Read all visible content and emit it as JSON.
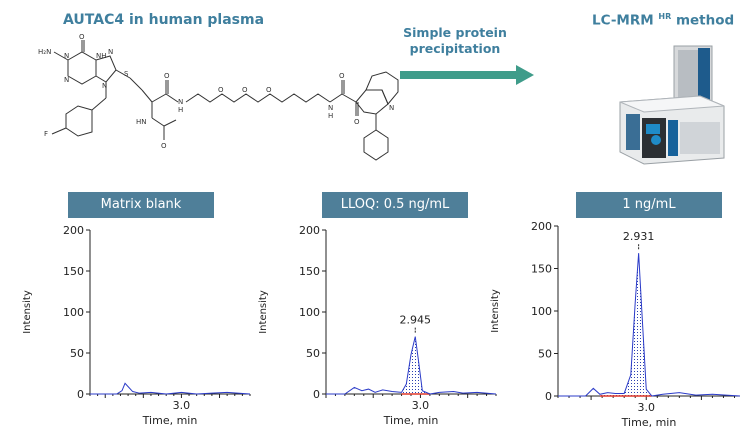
{
  "header": {
    "molecule_title": "AUTAC4 in human plasma",
    "step_label_line1": "Simple protein",
    "step_label_line2": "precipitation",
    "method_prefix": "LC-MRM",
    "method_sup": "HR",
    "method_suffix": "method"
  },
  "molecule_atoms": {
    "h2n": "H₂N",
    "o": "O",
    "nh": "NH",
    "n1": "N",
    "n2": "N",
    "n3": "N",
    "n4": "N",
    "s": "S",
    "f": "F",
    "o_amide": "O",
    "hn_amide": "HN",
    "o_acetyl": "O",
    "h_nh": "H",
    "n_chain": "N",
    "o1": "O",
    "o2": "O",
    "o3": "O",
    "hn_end": "N",
    "h_end": "H",
    "o_end1": "O",
    "o_end2": "O",
    "nh_indole": "N"
  },
  "chart_data": [
    {
      "type": "line",
      "title": "Matrix blank",
      "xlabel": "Time, min",
      "ylabel": "Intensity",
      "ylim": [
        0,
        200
      ],
      "yticks": [
        0,
        50,
        100,
        150,
        200
      ],
      "xticks": [
        3.0
      ],
      "xlim": [
        1.8,
        3.9
      ],
      "peak_label": "",
      "series": [
        {
          "x": [
            1.8,
            2.15,
            2.22,
            2.26,
            2.3,
            2.36,
            2.45,
            2.6,
            2.8,
            3.0,
            3.2,
            3.4,
            3.6,
            3.9
          ],
          "y": [
            0,
            0,
            4,
            13,
            9,
            3,
            1,
            2,
            0,
            2,
            0,
            1,
            2,
            0
          ]
        }
      ]
    },
    {
      "type": "line",
      "title": "LLOQ: 0.5 ng/mL",
      "xlabel": "Time, min",
      "ylabel": "Intensity",
      "ylim": [
        0,
        200
      ],
      "yticks": [
        0,
        50,
        100,
        150,
        200
      ],
      "xticks": [
        3.0
      ],
      "xlim": [
        2.0,
        3.8
      ],
      "peak_label": "2.945",
      "series": [
        {
          "x": [
            2.0,
            2.2,
            2.3,
            2.38,
            2.45,
            2.52,
            2.6,
            2.7,
            2.8,
            2.85,
            2.9,
            2.945,
            2.98,
            3.02,
            3.1,
            3.2,
            3.35,
            3.45,
            3.6,
            3.8
          ],
          "y": [
            0,
            0,
            8,
            4,
            6,
            2,
            5,
            3,
            2,
            12,
            48,
            70,
            40,
            4,
            0,
            2,
            3,
            1,
            2,
            0
          ]
        }
      ]
    },
    {
      "type": "line",
      "title": "1 ng/mL",
      "xlabel": "Time, min",
      "ylabel": "Intensity",
      "ylim": [
        0,
        200
      ],
      "yticks": [
        0,
        50,
        100,
        150,
        200
      ],
      "xticks": [
        3.0
      ],
      "xlim": [
        2.2,
        3.85
      ],
      "peak_label": "2.931",
      "series": [
        {
          "x": [
            2.2,
            2.45,
            2.52,
            2.58,
            2.65,
            2.72,
            2.8,
            2.86,
            2.9,
            2.931,
            2.96,
            3.0,
            3.05,
            3.15,
            3.3,
            3.45,
            3.6,
            3.85
          ],
          "y": [
            0,
            0,
            9,
            2,
            4,
            3,
            3,
            25,
            110,
            168,
            100,
            8,
            0,
            2,
            4,
            1,
            2,
            0
          ]
        }
      ]
    }
  ]
}
